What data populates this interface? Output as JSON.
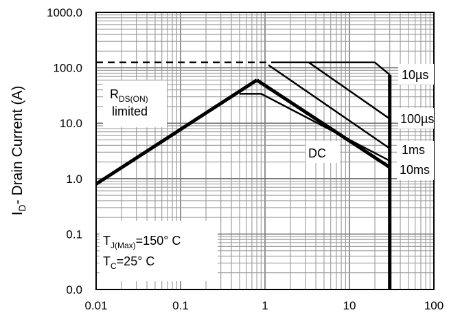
{
  "chart_data": {
    "type": "line",
    "x_scale": "log",
    "y_scale": "log",
    "xlim": [
      0.01,
      100
    ],
    "ylim": [
      0.01,
      1000
    ],
    "grid": true,
    "ylabel": {
      "main": "I",
      "sub": "D",
      "rest": "- Drain Current (A)"
    },
    "x_ticks": [
      {
        "value": 0.01,
        "label": "0.01"
      },
      {
        "value": 0.1,
        "label": "0.1"
      },
      {
        "value": 1,
        "label": "1"
      },
      {
        "value": 10,
        "label": "10"
      },
      {
        "value": 100,
        "label": "100"
      }
    ],
    "y_ticks": [
      {
        "value": 0.01,
        "label": "0.0"
      },
      {
        "value": 0.1,
        "label": "0.1"
      },
      {
        "value": 1,
        "label": "1.0"
      },
      {
        "value": 10,
        "label": "10.0"
      },
      {
        "value": 100,
        "label": "100.0"
      },
      {
        "value": 1000,
        "label": "1000.0"
      }
    ],
    "series": [
      {
        "id": "rds",
        "style": "solid",
        "width": 5,
        "x": [
          0.01,
          0.8
        ],
        "y": [
          0.8,
          60
        ]
      },
      {
        "id": "ipk",
        "style": "dashed",
        "width": 2.5,
        "x": [
          0.01,
          1.4
        ],
        "y": [
          125,
          125
        ]
      },
      {
        "id": "dc",
        "style": "solid",
        "width": 5,
        "x": [
          0.8,
          30
        ],
        "y": [
          60,
          1.6
        ]
      },
      {
        "id": "10ms",
        "style": "solid",
        "width": 2.5,
        "x": [
          0.5,
          0.9,
          30
        ],
        "y": [
          34,
          34,
          2.1
        ]
      },
      {
        "id": "1ms",
        "style": "solid",
        "width": 2.5,
        "x": [
          1.1,
          30
        ],
        "y": [
          112,
          3.5
        ]
      },
      {
        "id": "100us",
        "style": "solid",
        "width": 2.5,
        "x": [
          1.4,
          3.3,
          30
        ],
        "y": [
          125,
          125,
          12
        ]
      },
      {
        "id": "10us",
        "style": "solid",
        "width": 2.5,
        "x": [
          1.4,
          20,
          30
        ],
        "y": [
          125,
          125,
          75
        ]
      },
      {
        "id": "vdss",
        "style": "solid",
        "width": 5,
        "x": [
          30,
          30
        ],
        "y": [
          75,
          0.01
        ]
      }
    ],
    "annotations": {
      "rds_main": "R",
      "rds_sub": "DS(ON)",
      "rds_line2": "limited",
      "dc": "DC",
      "t10us": "10µs",
      "t100us": "100µs",
      "t1ms": "1ms",
      "t10ms": "10ms",
      "tj_main": "T",
      "tj_sub": "J(Max)",
      "tj_rest": "=150° C",
      "tc_main": "T",
      "tc_sub": "C",
      "tc_rest": "=25° C"
    }
  }
}
